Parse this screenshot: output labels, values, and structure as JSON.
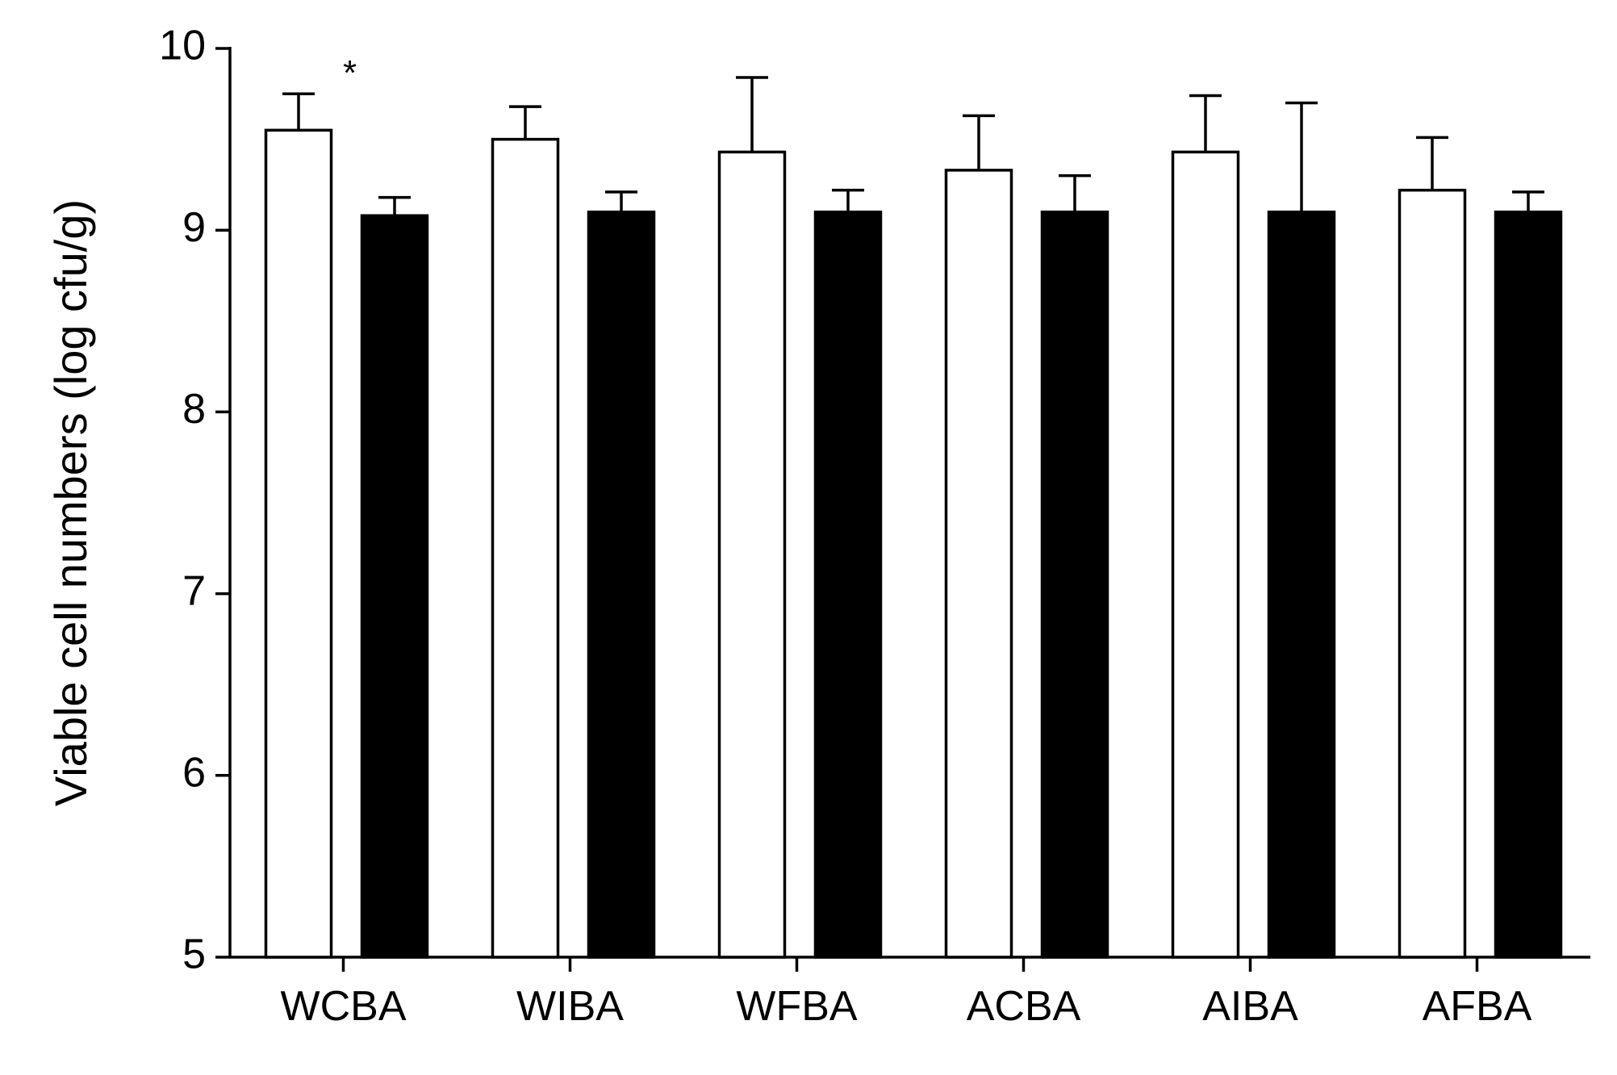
{
  "chart_data": {
    "type": "bar",
    "y_label": "Viable cell numbers (log cfu/g)",
    "annotation": "*",
    "categories": [
      "WCBA",
      "WIBA",
      "WFBA",
      "ACBA",
      "AIBA",
      "AFBA"
    ],
    "series": [
      {
        "color": "#ffffff",
        "values": [
          9.55,
          9.5,
          9.43,
          9.33,
          9.43,
          9.22
        ],
        "errors": [
          0.2,
          0.18,
          0.41,
          0.3,
          0.31,
          0.29
        ]
      },
      {
        "color": "#000000",
        "values": [
          9.08,
          9.1,
          9.1,
          9.1,
          9.1,
          9.1
        ],
        "errors": [
          0.1,
          0.11,
          0.12,
          0.2,
          0.6,
          0.11
        ]
      }
    ],
    "ylim": [
      5,
      10
    ],
    "yticks": [
      5,
      6,
      7,
      8,
      9,
      10
    ],
    "grid": false
  }
}
